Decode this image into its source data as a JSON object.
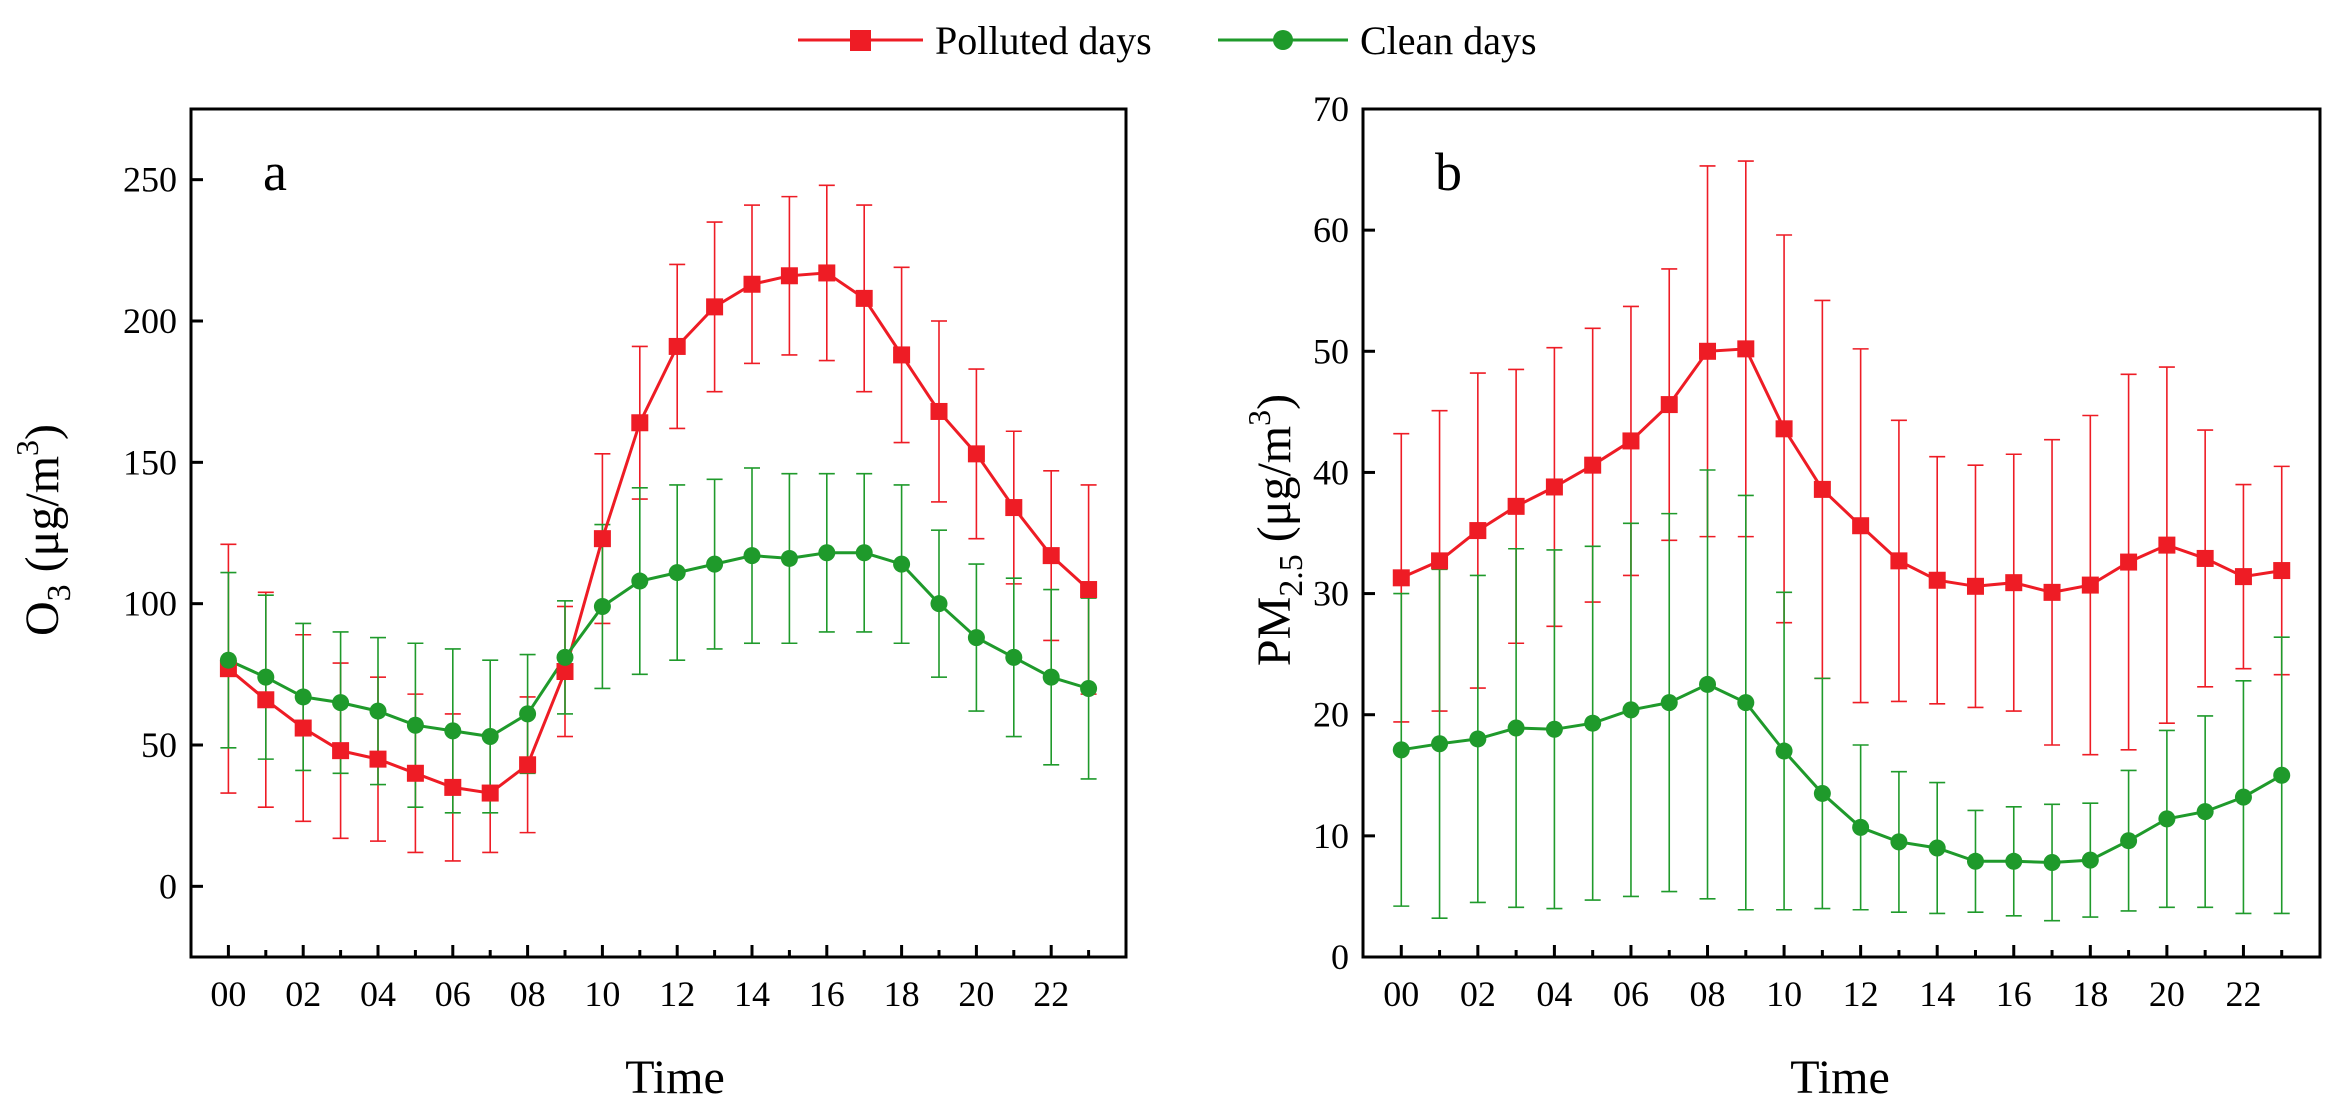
{
  "legend": [
    {
      "name": "Polluted days",
      "color": "#ee1c25",
      "marker": "square"
    },
    {
      "name": "Clean days",
      "color": "#1f9a2b",
      "marker": "circle"
    }
  ],
  "chart_data": [
    {
      "type": "line",
      "panel_label": "a",
      "xlabel": "Time",
      "ylabel": "O3 (μg/m3)",
      "ylabel_parts": {
        "base": "O",
        "sub": "3",
        "unit_open": " (μg/m",
        "sup": "3",
        "unit_close": ")"
      },
      "ylim": [
        -25,
        275
      ],
      "yticks": [
        0,
        50,
        100,
        150,
        200,
        250
      ],
      "xlim": [
        -1,
        24
      ],
      "x": [
        0,
        1,
        2,
        3,
        4,
        5,
        6,
        7,
        8,
        9,
        10,
        11,
        12,
        13,
        14,
        15,
        16,
        17,
        18,
        19,
        20,
        21,
        22,
        23
      ],
      "xtick_values": [
        0,
        2,
        4,
        6,
        8,
        10,
        12,
        14,
        16,
        18,
        20,
        22
      ],
      "xtick_labels": [
        "00",
        "02",
        "04",
        "06",
        "08",
        "10",
        "12",
        "14",
        "16",
        "18",
        "20",
        "22"
      ],
      "series": [
        {
          "name": "Polluted days",
          "color": "#ee1c25",
          "marker": "square",
          "values": [
            77,
            66,
            56,
            48,
            45,
            40,
            35,
            33,
            43,
            76,
            123,
            164,
            191,
            205,
            213,
            216,
            217,
            208,
            188,
            168,
            153,
            134,
            117,
            105
          ],
          "errors": [
            44,
            38,
            33,
            31,
            29,
            28,
            26,
            21,
            24,
            23,
            30,
            27,
            29,
            30,
            28,
            28,
            31,
            33,
            31,
            32,
            30,
            27,
            30,
            37
          ]
        },
        {
          "name": "Clean days",
          "color": "#1f9a2b",
          "marker": "circle",
          "values": [
            80,
            74,
            67,
            65,
            62,
            57,
            55,
            53,
            61,
            81,
            99,
            108,
            111,
            114,
            117,
            116,
            118,
            118,
            114,
            100,
            88,
            81,
            74,
            70
          ],
          "errors": [
            31,
            29,
            26,
            25,
            26,
            29,
            29,
            27,
            21,
            20,
            29,
            33,
            31,
            30,
            31,
            30,
            28,
            28,
            28,
            26,
            26,
            28,
            31,
            32
          ]
        }
      ]
    },
    {
      "type": "line",
      "panel_label": "b",
      "xlabel": "Time",
      "ylabel": "PM2.5 (μg/m3)",
      "ylabel_parts": {
        "base": "PM",
        "sub": "2.5",
        "unit_open": " (μg/m",
        "sup": "3",
        "unit_close": ")"
      },
      "ylim": [
        0,
        70
      ],
      "yticks": [
        0,
        10,
        20,
        30,
        40,
        50,
        60,
        70
      ],
      "xlim": [
        -1,
        24
      ],
      "x": [
        0,
        1,
        2,
        3,
        4,
        5,
        6,
        7,
        8,
        9,
        10,
        11,
        12,
        13,
        14,
        15,
        16,
        17,
        18,
        19,
        20,
        21,
        22,
        23
      ],
      "xtick_values": [
        0,
        2,
        4,
        6,
        8,
        10,
        12,
        14,
        16,
        18,
        20,
        22
      ],
      "xtick_labels": [
        "00",
        "02",
        "04",
        "06",
        "08",
        "10",
        "12",
        "14",
        "16",
        "18",
        "20",
        "22"
      ],
      "series": [
        {
          "name": "Polluted days",
          "color": "#ee1c25",
          "marker": "square",
          "values": [
            31.3,
            32.7,
            35.2,
            37.2,
            38.8,
            40.6,
            42.6,
            45.6,
            50.0,
            50.2,
            43.6,
            38.6,
            35.6,
            32.7,
            31.1,
            30.6,
            30.9,
            30.1,
            30.7,
            32.6,
            34.0,
            32.9,
            31.4,
            31.9
          ],
          "errors": [
            11.9,
            12.4,
            13.0,
            11.3,
            11.5,
            11.3,
            11.1,
            11.2,
            15.3,
            15.5,
            16.0,
            15.6,
            14.6,
            11.6,
            10.2,
            10.0,
            10.6,
            12.6,
            14.0,
            15.5,
            14.7,
            10.6,
            7.6,
            8.6
          ]
        },
        {
          "name": "Clean days",
          "color": "#1f9a2b",
          "marker": "circle",
          "values": [
            17.1,
            17.6,
            18.0,
            18.9,
            18.8,
            19.3,
            20.4,
            21.0,
            22.5,
            21.0,
            17.0,
            13.5,
            10.7,
            9.5,
            9.0,
            7.9,
            7.9,
            7.8,
            8.0,
            9.6,
            11.4,
            12.0,
            13.2,
            15.0
          ],
          "errors": [
            12.9,
            14.4,
            13.5,
            14.8,
            14.8,
            14.6,
            15.4,
            15.6,
            17.7,
            17.1,
            13.1,
            9.5,
            6.8,
            5.8,
            5.4,
            4.2,
            4.5,
            4.8,
            4.7,
            5.8,
            7.3,
            7.9,
            9.6,
            11.4
          ]
        }
      ]
    }
  ]
}
